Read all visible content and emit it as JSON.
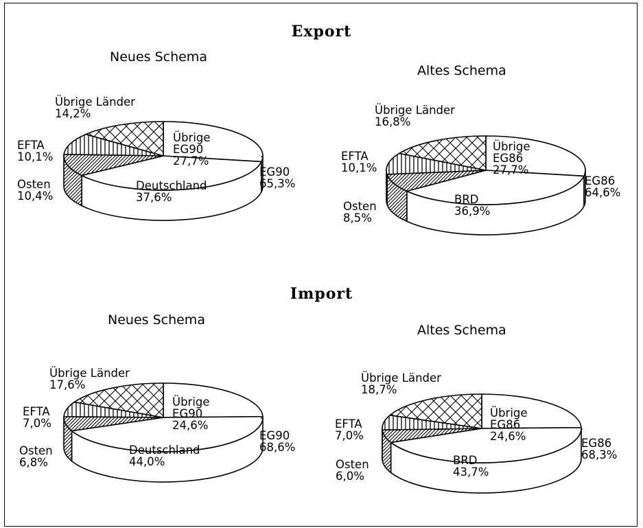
{
  "sections": {
    "export": "Export",
    "import": "Import"
  },
  "chart_data": [
    {
      "type": "pie",
      "title": "Neues Schema",
      "group": "Export",
      "slices": [
        {
          "name": "Übrige EG90",
          "value": 27.7
        },
        {
          "name": "Deutschland",
          "value": 37.6
        },
        {
          "name": "Osten",
          "value": 10.4
        },
        {
          "name": "EFTA",
          "value": 10.1
        },
        {
          "name": "Übrige Länder",
          "value": 14.2
        }
      ],
      "group_total": {
        "name": "EG90",
        "value": 65.3
      },
      "labels": {
        "rest": [
          "Übrige Länder",
          "14,2%"
        ],
        "efta": [
          "EFTA",
          "10,1%"
        ],
        "osten": [
          "Osten",
          "10,4%"
        ],
        "ueb": [
          "Übrige",
          "EG90",
          "27,7%"
        ],
        "main": [
          "Deutschland",
          "37,6%"
        ],
        "total": [
          "EG90",
          "65,3%"
        ]
      }
    },
    {
      "type": "pie",
      "title": "Altes Schema",
      "group": "Export",
      "slices": [
        {
          "name": "Übrige EG86",
          "value": 27.7
        },
        {
          "name": "BRD",
          "value": 36.9
        },
        {
          "name": "Osten",
          "value": 8.5
        },
        {
          "name": "EFTA",
          "value": 10.1
        },
        {
          "name": "Übrige Länder",
          "value": 16.8
        }
      ],
      "group_total": {
        "name": "EG86",
        "value": 64.6
      },
      "labels": {
        "rest": [
          "Übrige Länder",
          "16,8%"
        ],
        "efta": [
          "EFTA",
          "10,1%"
        ],
        "osten": [
          "Osten",
          "8,5%"
        ],
        "ueb": [
          "Übrige",
          "EG86",
          "27,7%"
        ],
        "main": [
          "BRD",
          "36,9%"
        ],
        "total": [
          "EG86",
          "64,6%"
        ]
      }
    },
    {
      "type": "pie",
      "title": "Neues Schema",
      "group": "Import",
      "slices": [
        {
          "name": "Übrige EG90",
          "value": 24.6
        },
        {
          "name": "Deutschland",
          "value": 44.0
        },
        {
          "name": "Osten",
          "value": 6.8
        },
        {
          "name": "EFTA",
          "value": 7.0
        },
        {
          "name": "Übrige Länder",
          "value": 17.6
        }
      ],
      "group_total": {
        "name": "EG90",
        "value": 68.6
      },
      "labels": {
        "rest": [
          "Übrige Länder",
          "17,6%"
        ],
        "efta": [
          "EFTA",
          "7,0%"
        ],
        "osten": [
          "Osten",
          "6,8%"
        ],
        "ueb": [
          "Übrige",
          "EG90",
          "24,6%"
        ],
        "main": [
          "Deutschland",
          "44,0%"
        ],
        "total": [
          "EG90",
          "68,6%"
        ]
      }
    },
    {
      "type": "pie",
      "title": "Altes Schema",
      "group": "Import",
      "slices": [
        {
          "name": "Übrige EG86",
          "value": 24.6
        },
        {
          "name": "BRD",
          "value": 43.7
        },
        {
          "name": "Osten",
          "value": 6.0
        },
        {
          "name": "EFTA",
          "value": 7.0
        },
        {
          "name": "Übrige Länder",
          "value": 18.7
        }
      ],
      "group_total": {
        "name": "EG86",
        "value": 68.3
      },
      "labels": {
        "rest": [
          "Übrige Länder",
          "18,7%"
        ],
        "efta": [
          "EFTA",
          "7,0%"
        ],
        "osten": [
          "Osten",
          "6,0%"
        ],
        "ueb": [
          "Übrige",
          "EG86",
          "24,6%"
        ],
        "main": [
          "BRD",
          "43,7%"
        ],
        "total": [
          "EG86",
          "68,3%"
        ]
      }
    }
  ]
}
